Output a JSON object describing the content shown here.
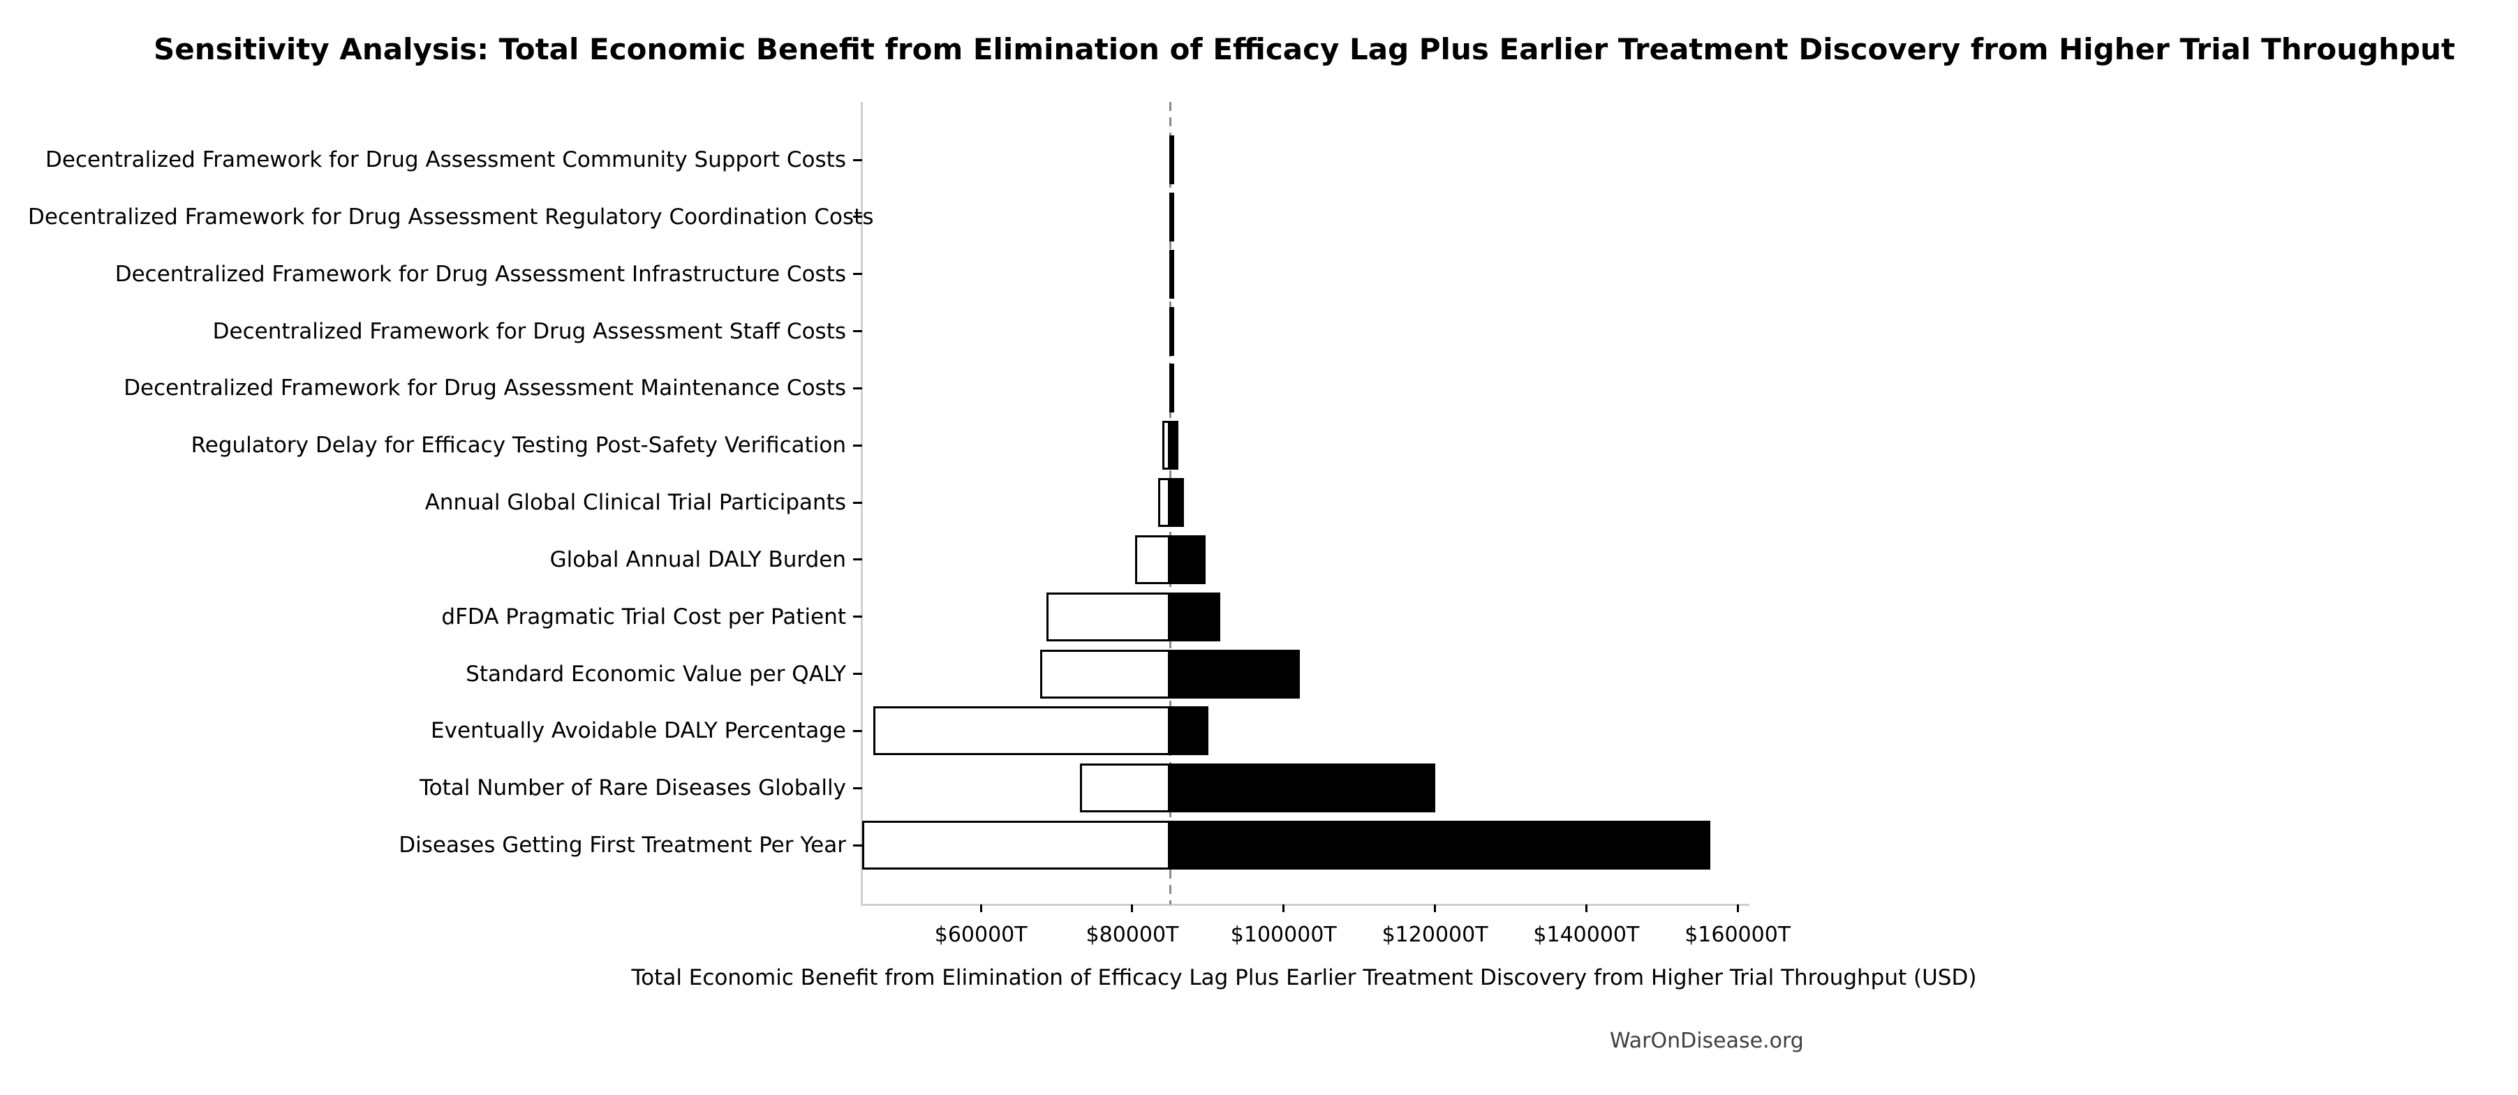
{
  "title": "Sensitivity Analysis: Total Economic Benefit from Elimination of Efficacy Lag Plus Earlier Treatment Discovery from Higher Trial Throughput",
  "x_axis_title": "Total Economic Benefit from Elimination of Efficacy Lag Plus Earlier Treatment Discovery from Higher Trial Throughput (USD)",
  "footer": "WarOnDisease.org",
  "chart_data": {
    "type": "bar",
    "subtype": "tornado",
    "orientation": "horizontal",
    "unit": "USD (trillions, T)",
    "baseline_value": 85000,
    "xlim": [
      44300,
      161000
    ],
    "x_ticks": [
      60000,
      80000,
      100000,
      120000,
      140000,
      160000
    ],
    "x_tick_labels": [
      "$60000T",
      "$80000T",
      "$100000T",
      "$120000T",
      "$140000T",
      "$160000T"
    ],
    "grid": false,
    "legend": "none",
    "categories": [
      "Decentralized Framework for Drug Assessment Community Support Costs",
      "Decentralized Framework for Drug Assessment Regulatory Coordination Costs",
      "Decentralized Framework for Drug Assessment Infrastructure Costs",
      "Decentralized Framework for Drug Assessment Staff Costs",
      "Decentralized Framework for Drug Assessment Maintenance Costs",
      "Regulatory Delay for Efficacy Testing Post-Safety Verification",
      "Annual Global Clinical Trial Participants",
      "Global Annual DALY Burden",
      "dFDA Pragmatic Trial Cost per Patient",
      "Standard Economic Value per QALY",
      "Eventually Avoidable DALY Percentage",
      "Total Number of Rare Diseases Globally",
      "Diseases Getting First Treatment Per Year"
    ],
    "series": [
      {
        "name": "low_estimate",
        "values": [
          84950,
          84950,
          84950,
          84950,
          84950,
          84000,
          83400,
          80400,
          68700,
          67800,
          45800,
          73100,
          44300
        ]
      },
      {
        "name": "high_estimate",
        "values": [
          85050,
          85050,
          85050,
          85050,
          85050,
          86100,
          86800,
          89700,
          91600,
          102100,
          90100,
          120000,
          156400
        ]
      }
    ],
    "colors": {
      "bar_low_fill": "#ffffff",
      "bar_high_fill": "#000000",
      "bar_edge": "#000000",
      "baseline_line": "#8a8a8a",
      "spine": "#cfcfcf",
      "tick": "#000000",
      "footer_text": "#404040"
    }
  }
}
